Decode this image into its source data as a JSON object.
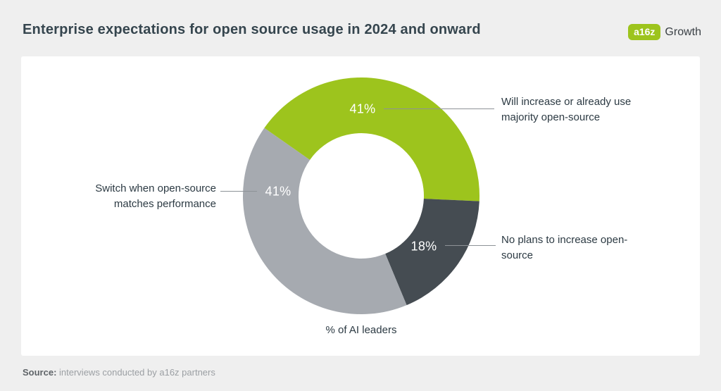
{
  "header": {
    "title": "Enterprise expectations for open source usage in 2024 and onward",
    "logo_mark": "a16z",
    "logo_wordmark": "Growth"
  },
  "chart_data": {
    "type": "pie",
    "donut": true,
    "start_angle_deg": -55,
    "xlabel": "% of AI leaders",
    "total": 100,
    "segments": [
      {
        "label": "Will increase or already use majority open-source",
        "value": 41,
        "display": "41%",
        "color": "#9dc41d"
      },
      {
        "label": "No plans to increase open-source",
        "value": 18,
        "display": "18%",
        "color": "#454c52"
      },
      {
        "label": "Switch when open-source matches performance",
        "value": 41,
        "display": "41%",
        "color": "#a6aab0"
      }
    ]
  },
  "footer": {
    "source_label": "Source:",
    "source_text": " interviews conducted by a16z partners"
  },
  "colors": {
    "accent_green": "#9dc41d",
    "segment_dark": "#454c52",
    "segment_gray": "#a6aab0",
    "background": "#efefef",
    "card": "#ffffff"
  }
}
